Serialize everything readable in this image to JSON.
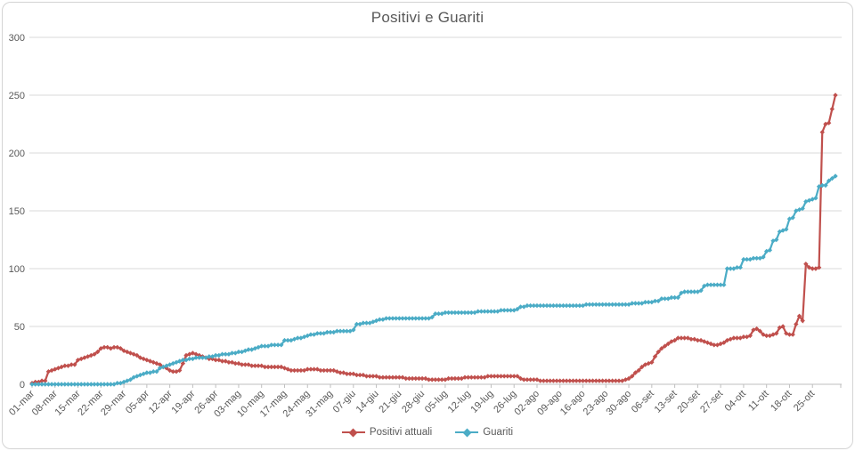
{
  "window": {
    "background_color": "#ffffff",
    "border_color": "#d4d4d4"
  },
  "chart": {
    "title": "Positivi e Guariti",
    "text_color": "#595959",
    "gridline_color": "#d9d9d9",
    "axis_line_color": "#bfbfbf"
  },
  "chart_data": {
    "type": "line",
    "title": "Positivi e Guariti",
    "xlabel": "",
    "ylabel": "",
    "ylim": [
      0,
      300
    ],
    "y_ticks": [
      0,
      50,
      100,
      150,
      200,
      250,
      300
    ],
    "grid": "horizontal",
    "legend_position": "bottom",
    "marker": "diamond",
    "x_start": "01-mar",
    "x_tick_interval_days": 7,
    "x_tick_labels": [
      "01-mar",
      "08-mar",
      "15-mar",
      "22-mar",
      "29-mar",
      "05-apr",
      "12-apr",
      "19-apr",
      "26-apr",
      "03-mag",
      "10-mag",
      "17-mag",
      "24-mag",
      "31-mag",
      "07-giu",
      "14-giu",
      "21-giu",
      "28-giu",
      "05-lug",
      "12-lug",
      "19-lug",
      "26-lug",
      "02-ago",
      "09-ago",
      "16-ago",
      "23-ago",
      "30-ago",
      "06-set",
      "13-set",
      "20-set",
      "27-set",
      "04-ott",
      "11-ott",
      "18-ott",
      "25-ott"
    ],
    "series": [
      {
        "name": "Positivi attuali",
        "color": "#C0504D",
        "values": [
          1,
          2,
          2,
          3,
          3,
          11,
          12,
          13,
          14,
          15,
          16,
          16,
          17,
          17,
          21,
          22,
          23,
          24,
          25,
          26,
          28,
          31,
          32,
          32,
          31,
          32,
          32,
          31,
          29,
          28,
          27,
          26,
          25,
          23,
          22,
          21,
          20,
          19,
          18,
          17,
          15,
          14,
          12,
          11,
          11,
          12,
          18,
          25,
          26,
          27,
          26,
          25,
          24,
          23,
          22,
          22,
          21,
          21,
          20,
          20,
          19,
          19,
          18,
          18,
          17,
          17,
          17,
          16,
          16,
          16,
          16,
          15,
          15,
          15,
          15,
          15,
          15,
          14,
          13,
          12,
          12,
          12,
          12,
          12,
          13,
          13,
          13,
          13,
          12,
          12,
          12,
          12,
          12,
          11,
          10,
          10,
          9,
          9,
          9,
          8,
          8,
          8,
          7,
          7,
          7,
          7,
          6,
          6,
          6,
          6,
          6,
          6,
          6,
          6,
          5,
          5,
          5,
          5,
          5,
          5,
          5,
          4,
          4,
          4,
          4,
          4,
          4,
          5,
          5,
          5,
          5,
          5,
          6,
          6,
          6,
          6,
          6,
          6,
          6,
          7,
          7,
          7,
          7,
          7,
          7,
          7,
          7,
          7,
          7,
          5,
          4,
          4,
          4,
          4,
          4,
          3,
          3,
          3,
          3,
          3,
          3,
          3,
          3,
          3,
          3,
          3,
          3,
          3,
          3,
          3,
          3,
          3,
          3,
          3,
          3,
          3,
          3,
          3,
          3,
          3,
          3,
          4,
          5,
          7,
          10,
          12,
          15,
          17,
          18,
          19,
          24,
          28,
          31,
          33,
          35,
          37,
          38,
          40,
          40,
          40,
          40,
          39,
          39,
          38,
          38,
          37,
          36,
          35,
          34,
          34,
          35,
          36,
          38,
          39,
          40,
          40,
          40,
          41,
          41,
          42,
          47,
          48,
          46,
          43,
          42,
          42,
          43,
          44,
          49,
          50,
          44,
          43,
          43,
          52,
          59,
          55,
          104,
          101,
          100,
          100,
          101,
          218,
          225,
          226,
          238,
          250
        ]
      },
      {
        "name": "Guariti",
        "color": "#4BACC6",
        "values": [
          0,
          0,
          0,
          0,
          0,
          0,
          0,
          0,
          0,
          0,
          0,
          0,
          0,
          0,
          0,
          0,
          0,
          0,
          0,
          0,
          0,
          0,
          0,
          0,
          0,
          0,
          1,
          1,
          2,
          3,
          4,
          6,
          7,
          8,
          9,
          10,
          10,
          11,
          11,
          14,
          15,
          16,
          17,
          18,
          19,
          20,
          21,
          21,
          22,
          22,
          23,
          23,
          23,
          23,
          24,
          24,
          25,
          25,
          26,
          26,
          26,
          27,
          27,
          28,
          28,
          29,
          30,
          30,
          31,
          32,
          33,
          33,
          33,
          34,
          34,
          34,
          34,
          38,
          38,
          38,
          39,
          40,
          40,
          41,
          42,
          43,
          43,
          44,
          44,
          44,
          45,
          45,
          45,
          46,
          46,
          46,
          46,
          46,
          47,
          52,
          52,
          53,
          53,
          53,
          54,
          55,
          56,
          56,
          57,
          57,
          57,
          57,
          57,
          57,
          57,
          57,
          57,
          57,
          57,
          57,
          57,
          57,
          58,
          61,
          61,
          61,
          62,
          62,
          62,
          62,
          62,
          62,
          62,
          62,
          62,
          62,
          63,
          63,
          63,
          63,
          63,
          63,
          63,
          64,
          64,
          64,
          64,
          64,
          65,
          67,
          67,
          68,
          68,
          68,
          68,
          68,
          68,
          68,
          68,
          68,
          68,
          68,
          68,
          68,
          68,
          68,
          68,
          68,
          68,
          69,
          69,
          69,
          69,
          69,
          69,
          69,
          69,
          69,
          69,
          69,
          69,
          69,
          69,
          70,
          70,
          70,
          70,
          71,
          71,
          71,
          72,
          72,
          74,
          74,
          74,
          75,
          75,
          75,
          79,
          80,
          80,
          80,
          80,
          80,
          81,
          85,
          86,
          86,
          86,
          86,
          86,
          86,
          100,
          100,
          100,
          101,
          101,
          108,
          108,
          108,
          109,
          109,
          109,
          110,
          115,
          116,
          124,
          125,
          132,
          133,
          134,
          143,
          144,
          150,
          151,
          152,
          158,
          159,
          160,
          161,
          171,
          172,
          172,
          176,
          178,
          180
        ]
      }
    ]
  },
  "legend": {
    "items": [
      {
        "label": "Positivi attuali"
      },
      {
        "label": "Guariti"
      }
    ]
  }
}
